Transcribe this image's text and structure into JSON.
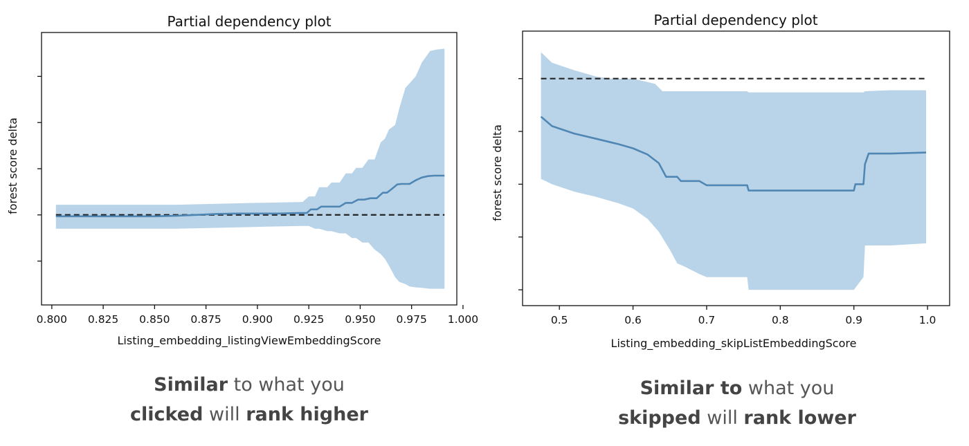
{
  "chart_data": [
    {
      "type": "line",
      "title": "Partial dependency plot",
      "xlabel": "Listing_embedding_listingViewEmbeddingScore",
      "ylabel": "forest score delta",
      "xlim": [
        0.795,
        0.997
      ],
      "ylim": [
        -0.195,
        0.395
      ],
      "x_ticks": [
        "0.800",
        "0.825",
        "0.850",
        "0.875",
        "0.900",
        "0.925",
        "0.950",
        "0.975",
        "1.000"
      ],
      "y_ticks": [
        -0.1,
        0.0,
        0.1,
        0.2,
        0.3
      ],
      "y_tick_labels_visible": false,
      "grid": false,
      "baseline": 0,
      "series": [
        {
          "role": "mean",
          "color": "#4f86b3",
          "x": [
            0.802,
            0.81,
            0.83,
            0.85,
            0.86,
            0.87,
            0.88,
            0.89,
            0.9,
            0.91,
            0.92,
            0.924,
            0.926,
            0.929,
            0.931,
            0.934,
            0.937,
            0.94,
            0.943,
            0.946,
            0.949,
            0.952,
            0.955,
            0.958,
            0.961,
            0.963,
            0.965,
            0.968,
            0.97,
            0.972,
            0.974,
            0.977,
            0.98,
            0.983,
            0.986,
            0.988,
            0.991
          ],
          "y": [
            -0.003,
            -0.003,
            -0.003,
            -0.003,
            -0.002,
            0.0,
            0.002,
            0.003,
            0.003,
            0.003,
            0.004,
            0.004,
            0.012,
            0.012,
            0.018,
            0.018,
            0.018,
            0.018,
            0.026,
            0.026,
            0.033,
            0.033,
            0.036,
            0.036,
            0.048,
            0.048,
            0.055,
            0.066,
            0.067,
            0.067,
            0.067,
            0.075,
            0.081,
            0.084,
            0.085,
            0.085,
            0.085
          ]
        },
        {
          "role": "upper_bound",
          "x": [
            0.802,
            0.83,
            0.86,
            0.88,
            0.9,
            0.922,
            0.925,
            0.928,
            0.93,
            0.934,
            0.936,
            0.94,
            0.943,
            0.946,
            0.948,
            0.951,
            0.954,
            0.957,
            0.96,
            0.962,
            0.964,
            0.967,
            0.969,
            0.972,
            0.974,
            0.977,
            0.98,
            0.984,
            0.987,
            0.991
          ],
          "y": [
            0.022,
            0.022,
            0.022,
            0.024,
            0.026,
            0.028,
            0.04,
            0.04,
            0.06,
            0.06,
            0.07,
            0.07,
            0.09,
            0.09,
            0.102,
            0.102,
            0.12,
            0.12,
            0.157,
            0.165,
            0.185,
            0.195,
            0.23,
            0.275,
            0.285,
            0.3,
            0.33,
            0.355,
            0.358,
            0.36
          ]
        },
        {
          "role": "lower_bound",
          "x": [
            0.802,
            0.83,
            0.86,
            0.88,
            0.9,
            0.922,
            0.925,
            0.928,
            0.93,
            0.934,
            0.936,
            0.94,
            0.943,
            0.946,
            0.948,
            0.951,
            0.954,
            0.957,
            0.96,
            0.962,
            0.964,
            0.967,
            0.969,
            0.972,
            0.974,
            0.977,
            0.98,
            0.984,
            0.987,
            0.991
          ],
          "y": [
            -0.03,
            -0.03,
            -0.03,
            -0.028,
            -0.026,
            -0.024,
            -0.024,
            -0.03,
            -0.03,
            -0.035,
            -0.035,
            -0.04,
            -0.04,
            -0.05,
            -0.05,
            -0.06,
            -0.06,
            -0.075,
            -0.085,
            -0.095,
            -0.11,
            -0.135,
            -0.145,
            -0.15,
            -0.155,
            -0.157,
            -0.158,
            -0.16,
            -0.16,
            -0.16
          ]
        }
      ]
    },
    {
      "type": "line",
      "title": "Partial dependency plot",
      "xlabel": "Listing_embedding_skipListEmbeddingScore",
      "ylabel": "forest score delta",
      "xlim": [
        0.45,
        1.03
      ],
      "ylim": [
        -0.215,
        0.045
      ],
      "x_ticks": [
        "0.5",
        "0.6",
        "0.7",
        "0.8",
        "0.9",
        "1.0"
      ],
      "y_ticks": [
        -0.2,
        -0.15,
        -0.1,
        -0.05,
        0.0
      ],
      "y_tick_labels_visible": false,
      "grid": false,
      "baseline": 0,
      "series": [
        {
          "role": "mean",
          "color": "#4f86b3",
          "x": [
            0.475,
            0.49,
            0.52,
            0.55,
            0.58,
            0.6,
            0.62,
            0.635,
            0.645,
            0.66,
            0.665,
            0.69,
            0.7,
            0.73,
            0.755,
            0.757,
            0.8,
            0.85,
            0.9,
            0.902,
            0.913,
            0.915,
            0.92,
            0.95,
            0.998
          ],
          "y": [
            -0.036,
            -0.045,
            -0.052,
            -0.057,
            -0.062,
            -0.066,
            -0.072,
            -0.08,
            -0.093,
            -0.093,
            -0.097,
            -0.097,
            -0.101,
            -0.101,
            -0.101,
            -0.106,
            -0.106,
            -0.106,
            -0.106,
            -0.1,
            -0.1,
            -0.081,
            -0.071,
            -0.071,
            -0.07
          ]
        },
        {
          "role": "upper_bound",
          "x": [
            0.475,
            0.49,
            0.52,
            0.55,
            0.57,
            0.6,
            0.63,
            0.64,
            0.67,
            0.7,
            0.73,
            0.755,
            0.757,
            0.8,
            0.85,
            0.9,
            0.913,
            0.915,
            0.95,
            0.998
          ],
          "y": [
            0.025,
            0.015,
            0.008,
            0.002,
            0.0,
            0.0,
            -0.005,
            -0.012,
            -0.012,
            -0.012,
            -0.012,
            -0.012,
            -0.013,
            -0.013,
            -0.013,
            -0.013,
            -0.013,
            -0.012,
            -0.011,
            -0.011
          ]
        },
        {
          "role": "lower_bound",
          "x": [
            0.475,
            0.49,
            0.52,
            0.55,
            0.58,
            0.6,
            0.62,
            0.635,
            0.65,
            0.66,
            0.67,
            0.69,
            0.7,
            0.73,
            0.755,
            0.757,
            0.8,
            0.85,
            0.9,
            0.913,
            0.915,
            0.95,
            0.998
          ],
          "y": [
            -0.095,
            -0.1,
            -0.107,
            -0.112,
            -0.118,
            -0.123,
            -0.133,
            -0.145,
            -0.162,
            -0.175,
            -0.178,
            -0.185,
            -0.188,
            -0.188,
            -0.188,
            -0.2,
            -0.2,
            -0.2,
            -0.2,
            -0.188,
            -0.158,
            -0.158,
            -0.156
          ]
        }
      ]
    }
  ],
  "captions": [
    {
      "line1": [
        {
          "text": "Similar",
          "bold": true
        },
        {
          "text": " to what you",
          "bold": false
        }
      ],
      "line2": [
        {
          "text": "clicked",
          "bold": true
        },
        {
          "text": " will ",
          "bold": false
        },
        {
          "text": "rank higher",
          "bold": true
        }
      ]
    },
    {
      "line1": [
        {
          "text": "Similar to",
          "bold": true
        },
        {
          "text": " what you",
          "bold": false
        }
      ],
      "line2": [
        {
          "text": "skipped",
          "bold": true
        },
        {
          "text": " will ",
          "bold": false
        },
        {
          "text": "rank lower",
          "bold": true
        }
      ]
    }
  ]
}
